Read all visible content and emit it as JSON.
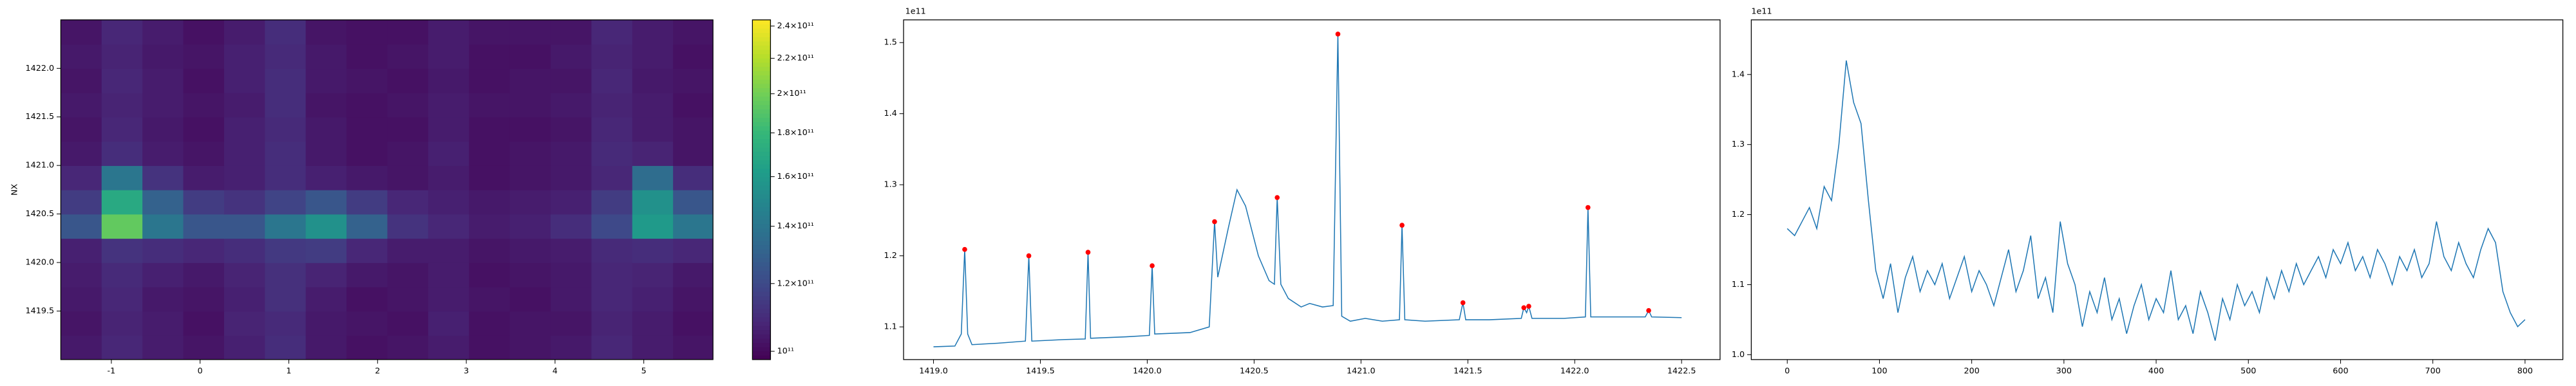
{
  "chart_data": [
    {
      "type": "heatmap",
      "ylabel": "NX",
      "colormap": "viridis",
      "x": [
        -1.34,
        -0.88,
        -0.42,
        0.04,
        0.5,
        0.96,
        1.42,
        1.88,
        2.34,
        2.8,
        3.26,
        3.72,
        4.18,
        4.64,
        5.1,
        5.56
      ],
      "y": [
        1419.125,
        1419.375,
        1419.625,
        1419.875,
        1420.125,
        1420.375,
        1420.625,
        1420.875,
        1421.125,
        1421.375,
        1421.625,
        1421.875,
        1422.125,
        1422.375
      ],
      "z": [
        [
          104000000000.0,
          108000000000.0,
          105000000000.0,
          103000000000.0,
          106000000000.0,
          110000000000.0,
          104000000000.0,
          102000000000.0,
          103000000000.0,
          105000000000.0,
          102000000000.0,
          103000000000.0,
          104000000000.0,
          108000000000.0,
          105000000000.0,
          103000000000.0
        ],
        [
          103000000000.0,
          107000000000.0,
          105000000000.0,
          102000000000.0,
          107000000000.0,
          109000000000.0,
          104000000000.0,
          103000000000.0,
          102000000000.0,
          106000000000.0,
          102000000000.0,
          103000000000.0,
          103000000000.0,
          107000000000.0,
          105000000000.0,
          102000000000.0
        ],
        [
          104000000000.0,
          108000000000.0,
          104000000000.0,
          103000000000.0,
          106000000000.0,
          111000000000.0,
          105000000000.0,
          102000000000.0,
          103000000000.0,
          105000000000.0,
          103000000000.0,
          102000000000.0,
          104000000000.0,
          108000000000.0,
          106000000000.0,
          103000000000.0
        ],
        [
          105000000000.0,
          109000000000.0,
          106000000000.0,
          104000000000.0,
          107000000000.0,
          111000000000.0,
          107000000000.0,
          104000000000.0,
          103000000000.0,
          105000000000.0,
          102000000000.0,
          103000000000.0,
          104000000000.0,
          108000000000.0,
          107000000000.0,
          104000000000.0
        ],
        [
          106000000000.0,
          112000000000.0,
          110000000000.0,
          108000000000.0,
          110000000000.0,
          114000000000.0,
          115000000000.0,
          108000000000.0,
          105000000000.0,
          105000000000.0,
          103000000000.0,
          104000000000.0,
          105000000000.0,
          109000000000.0,
          110000000000.0,
          108000000000.0
        ],
        [
          125000000000.0,
          195000000000.0,
          140000000000.0,
          125000000000.0,
          125000000000.0,
          140000000000.0,
          155000000000.0,
          130000000000.0,
          112000000000.0,
          108000000000.0,
          105000000000.0,
          106000000000.0,
          110000000000.0,
          120000000000.0,
          160000000000.0,
          140000000000.0
        ],
        [
          115000000000.0,
          170000000000.0,
          130000000000.0,
          115000000000.0,
          112000000000.0,
          118000000000.0,
          125000000000.0,
          115000000000.0,
          108000000000.0,
          106000000000.0,
          104000000000.0,
          105000000000.0,
          106000000000.0,
          115000000000.0,
          155000000000.0,
          125000000000.0
        ],
        [
          108000000000.0,
          140000000000.0,
          112000000000.0,
          105000000000.0,
          106000000000.0,
          110000000000.0,
          106000000000.0,
          104000000000.0,
          103000000000.0,
          105000000000.0,
          102000000000.0,
          103000000000.0,
          104000000000.0,
          108000000000.0,
          135000000000.0,
          110000000000.0
        ],
        [
          104000000000.0,
          110000000000.0,
          105000000000.0,
          103000000000.0,
          106000000000.0,
          110000000000.0,
          104000000000.0,
          102000000000.0,
          103000000000.0,
          106000000000.0,
          102000000000.0,
          103000000000.0,
          104000000000.0,
          109000000000.0,
          107000000000.0,
          103000000000.0
        ],
        [
          103000000000.0,
          108000000000.0,
          104000000000.0,
          102000000000.0,
          106000000000.0,
          109000000000.0,
          104000000000.0,
          102000000000.0,
          102000000000.0,
          105000000000.0,
          102000000000.0,
          102000000000.0,
          103000000000.0,
          108000000000.0,
          105000000000.0,
          103000000000.0
        ],
        [
          104000000000.0,
          107000000000.0,
          105000000000.0,
          103000000000.0,
          105000000000.0,
          110000000000.0,
          103000000000.0,
          102000000000.0,
          103000000000.0,
          105000000000.0,
          103000000000.0,
          103000000000.0,
          104000000000.0,
          107000000000.0,
          105000000000.0,
          102000000000.0
        ],
        [
          103000000000.0,
          108000000000.0,
          105000000000.0,
          102000000000.0,
          106000000000.0,
          110000000000.0,
          104000000000.0,
          103000000000.0,
          102000000000.0,
          104000000000.0,
          102000000000.0,
          103000000000.0,
          103000000000.0,
          108000000000.0,
          104000000000.0,
          103000000000.0
        ],
        [
          104000000000.0,
          107000000000.0,
          104000000000.0,
          103000000000.0,
          106000000000.0,
          109000000000.0,
          104000000000.0,
          102000000000.0,
          103000000000.0,
          105000000000.0,
          102000000000.0,
          102000000000.0,
          104000000000.0,
          107000000000.0,
          105000000000.0,
          102000000000.0
        ],
        [
          103000000000.0,
          108000000000.0,
          105000000000.0,
          102000000000.0,
          105000000000.0,
          110000000000.0,
          103000000000.0,
          102000000000.0,
          102000000000.0,
          105000000000.0,
          103000000000.0,
          103000000000.0,
          103000000000.0,
          108000000000.0,
          105000000000.0,
          103000000000.0
        ]
      ],
      "xlim": [
        -1.57,
        5.78
      ],
      "ylim": [
        1419.0,
        1422.5
      ],
      "xticks": [
        -1,
        0,
        1,
        2,
        3,
        4,
        5
      ],
      "yticks": [
        1419.5,
        {
          "value": 1420,
          "label": "1420.0"
        },
        1420.5,
        {
          "value": 1421,
          "label": "1421.0"
        },
        1421.5,
        {
          "value": 1422,
          "label": "1422.0"
        }
      ],
      "colorbar": {
        "scale": "log",
        "lim": [
          97800000000.0,
          244000000000.0
        ],
        "ticks": [
          {
            "value": 100000000000.0,
            "label": "10¹¹"
          },
          {
            "value": 120000000000.0,
            "label": "1.2×10¹¹"
          },
          {
            "value": 140000000000.0,
            "label": "1.4×10¹¹"
          },
          {
            "value": 160000000000.0,
            "label": "1.6×10¹¹"
          },
          {
            "value": 180000000000.0,
            "label": "1.8×10¹¹"
          },
          {
            "value": 200000000000.0,
            "label": "2×10¹¹"
          },
          {
            "value": 220000000000.0,
            "label": "2.2×10¹¹"
          },
          {
            "value": 240000000000.0,
            "label": "2.4×10¹¹"
          }
        ]
      }
    },
    {
      "type": "line",
      "offset_label": "1e11",
      "color": "#1f77b4",
      "x": [
        1419.0,
        1419.1,
        1419.13,
        1419.146,
        1419.16,
        1419.18,
        1419.3,
        1419.43,
        1419.446,
        1419.46,
        1419.6,
        1419.71,
        1419.723,
        1419.735,
        1419.9,
        1420.01,
        1420.023,
        1420.035,
        1420.2,
        1420.29,
        1420.315,
        1420.33,
        1420.38,
        1420.42,
        1420.46,
        1420.52,
        1420.57,
        1420.595,
        1420.608,
        1420.625,
        1420.66,
        1420.72,
        1420.76,
        1420.82,
        1420.87,
        1420.892,
        1420.91,
        1420.95,
        1421.02,
        1421.1,
        1421.18,
        1421.192,
        1421.205,
        1421.3,
        1421.46,
        1421.477,
        1421.49,
        1421.6,
        1421.75,
        1421.762,
        1421.775,
        1421.785,
        1421.8,
        1421.95,
        1422.05,
        1422.062,
        1422.075,
        1422.2,
        1422.33,
        1422.346,
        1422.36,
        1422.5
      ],
      "values": [
        1.072,
        1.073,
        1.09,
        1.209,
        1.09,
        1.075,
        1.077,
        1.08,
        1.2,
        1.08,
        1.082,
        1.083,
        1.205,
        1.084,
        1.086,
        1.088,
        1.186,
        1.09,
        1.092,
        1.1,
        1.248,
        1.17,
        1.24,
        1.293,
        1.27,
        1.2,
        1.165,
        1.16,
        1.282,
        1.16,
        1.14,
        1.128,
        1.133,
        1.128,
        1.13,
        1.512,
        1.115,
        1.108,
        1.112,
        1.108,
        1.11,
        1.243,
        1.11,
        1.108,
        1.11,
        1.134,
        1.11,
        1.11,
        1.112,
        1.127,
        1.12,
        1.129,
        1.112,
        1.112,
        1.114,
        1.268,
        1.114,
        1.114,
        1.114,
        1.123,
        1.114,
        1.113
      ],
      "peaks": {
        "color": "#ff0000",
        "x": [
          1419.146,
          1419.446,
          1419.723,
          1420.023,
          1420.315,
          1420.608,
          1420.892,
          1421.192,
          1421.477,
          1421.762,
          1421.785,
          1422.062,
          1422.346
        ],
        "values": [
          1.209,
          1.2,
          1.205,
          1.186,
          1.248,
          1.282,
          1.512,
          1.243,
          1.134,
          1.127,
          1.129,
          1.268,
          1.123
        ]
      },
      "xlim": [
        1418.86,
        1422.68
      ],
      "ylim": [
        1.054,
        1.532
      ],
      "xticks": [
        {
          "value": 1419,
          "label": "1419.0"
        },
        1419.5,
        {
          "value": 1420,
          "label": "1420.0"
        },
        1420.5,
        {
          "value": 1421,
          "label": "1421.0"
        },
        1421.5,
        {
          "value": 1422,
          "label": "1422.0"
        },
        1422.5
      ],
      "yticks": [
        1.1,
        1.2,
        1.3,
        1.4,
        1.5
      ]
    },
    {
      "type": "line",
      "offset_label": "1e11",
      "color": "#1f77b4",
      "x": [
        0,
        8,
        16,
        24,
        32,
        40,
        48,
        56,
        64,
        72,
        80,
        88,
        96,
        104,
        112,
        120,
        128,
        136,
        144,
        152,
        160,
        168,
        176,
        184,
        192,
        200,
        208,
        216,
        224,
        232,
        240,
        248,
        256,
        264,
        272,
        280,
        288,
        296,
        304,
        312,
        320,
        328,
        336,
        344,
        352,
        360,
        368,
        376,
        384,
        392,
        400,
        408,
        416,
        424,
        432,
        440,
        448,
        456,
        464,
        472,
        480,
        488,
        496,
        504,
        512,
        520,
        528,
        536,
        544,
        552,
        560,
        568,
        576,
        584,
        592,
        600,
        608,
        616,
        624,
        632,
        640,
        648,
        656,
        664,
        672,
        680,
        688,
        696,
        704,
        712,
        720,
        728,
        736,
        744,
        752,
        760,
        768,
        776,
        784,
        792,
        800
      ],
      "values": [
        1.18,
        1.17,
        1.19,
        1.21,
        1.18,
        1.24,
        1.22,
        1.3,
        1.42,
        1.36,
        1.33,
        1.22,
        1.12,
        1.08,
        1.13,
        1.06,
        1.11,
        1.14,
        1.09,
        1.12,
        1.1,
        1.13,
        1.08,
        1.11,
        1.14,
        1.09,
        1.12,
        1.1,
        1.07,
        1.11,
        1.15,
        1.09,
        1.12,
        1.17,
        1.08,
        1.11,
        1.06,
        1.19,
        1.13,
        1.1,
        1.04,
        1.09,
        1.06,
        1.11,
        1.05,
        1.08,
        1.03,
        1.07,
        1.1,
        1.05,
        1.08,
        1.06,
        1.12,
        1.05,
        1.07,
        1.03,
        1.09,
        1.06,
        1.02,
        1.08,
        1.05,
        1.1,
        1.07,
        1.09,
        1.06,
        1.11,
        1.08,
        1.12,
        1.09,
        1.13,
        1.1,
        1.12,
        1.14,
        1.11,
        1.15,
        1.13,
        1.16,
        1.12,
        1.14,
        1.11,
        1.15,
        1.13,
        1.1,
        1.14,
        1.12,
        1.15,
        1.11,
        1.13,
        1.19,
        1.14,
        1.12,
        1.16,
        1.13,
        1.11,
        1.15,
        1.18,
        1.16,
        1.09,
        1.06,
        1.04,
        1.05
      ],
      "xlim": [
        -39,
        841
      ],
      "ylim": [
        0.993,
        1.478
      ],
      "xticks": [
        0,
        100,
        200,
        300,
        400,
        500,
        600,
        700,
        800
      ],
      "yticks": [
        {
          "value": 1,
          "label": "1.0"
        },
        1.1,
        1.2,
        1.3,
        1.4
      ]
    }
  ]
}
